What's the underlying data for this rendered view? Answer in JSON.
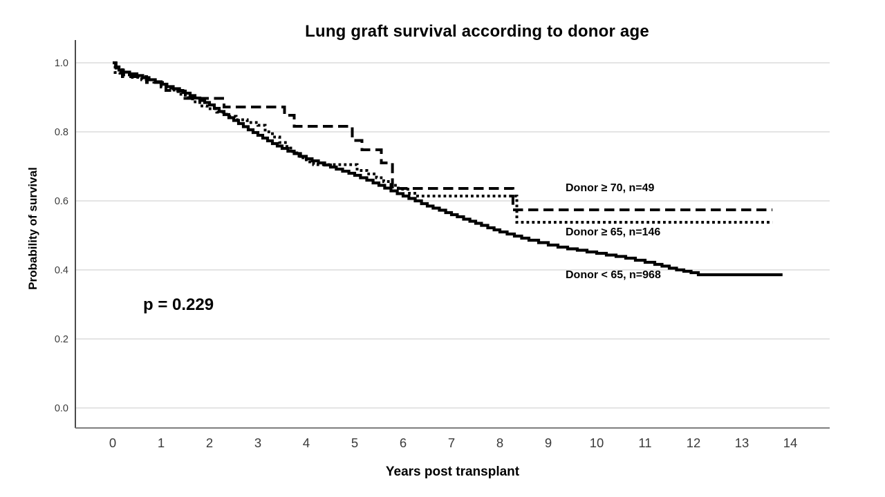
{
  "title": "Lung graft survival according to donor age",
  "p_value_label": "p = 0.229",
  "axes": {
    "x_title": "Years post transplant",
    "y_title": "Probability of survival",
    "x_ticks": [
      "0",
      "1",
      "2",
      "3",
      "4",
      "5",
      "6",
      "7",
      "8",
      "9",
      "10",
      "11",
      "12",
      "13",
      "14"
    ],
    "y_ticks": [
      "0.0",
      "0.2",
      "0.4",
      "0.6",
      "0.8",
      "1.0"
    ]
  },
  "annotations": [
    {
      "text": "Donor ≥ 70, n=49"
    },
    {
      "text": "Donor ≥ 65, n=146"
    },
    {
      "text": "Donor < 65, n=968"
    }
  ],
  "colors": {
    "curve": "#000000",
    "gridline": "#c9c9c9",
    "y_axis_line": "#4a4a4a",
    "x_axis_line": "#7d7d7d",
    "tick_label": "#3a3a3a"
  },
  "chart_data": {
    "type": "line",
    "subtype": "kaplan-meier-step",
    "title": "Lung graft survival according to donor age",
    "xlabel": "Years post transplant",
    "ylabel": "Probability of survival",
    "xlim": [
      0,
      14
    ],
    "ylim": [
      0.0,
      1.0
    ],
    "grid": "horizontal",
    "legend_position": "labels-on-plot",
    "p_value": 0.229,
    "series": [
      {
        "name": "Donor ≥ 70, n=49",
        "group": "donor-ge-70",
        "n": 49,
        "style": "dashed",
        "final_value": 0.574,
        "end_time": 13.63,
        "steps": [
          [
            0,
            1.0
          ],
          [
            0.07,
            0.98
          ],
          [
            0.2,
            0.96
          ],
          [
            0.7,
            0.943
          ],
          [
            1.1,
            0.92
          ],
          [
            1.45,
            0.897
          ],
          [
            2.3,
            0.872
          ],
          [
            3.55,
            0.848
          ],
          [
            3.75,
            0.816
          ],
          [
            4.95,
            0.775
          ],
          [
            5.15,
            0.748
          ],
          [
            5.55,
            0.71
          ],
          [
            5.78,
            0.636
          ],
          [
            8.27,
            0.574
          ]
        ]
      },
      {
        "name": "Donor ≥ 65, n=146",
        "group": "donor-ge-65",
        "n": 146,
        "style": "dotted",
        "final_value": 0.538,
        "end_time": 13.63,
        "steps": [
          [
            0,
            1.0
          ],
          [
            0.05,
            0.972
          ],
          [
            0.15,
            0.965
          ],
          [
            0.35,
            0.958
          ],
          [
            0.6,
            0.951
          ],
          [
            0.85,
            0.944
          ],
          [
            1.0,
            0.93
          ],
          [
            1.2,
            0.921
          ],
          [
            1.35,
            0.909
          ],
          [
            1.5,
            0.899
          ],
          [
            1.65,
            0.887
          ],
          [
            1.8,
            0.875
          ],
          [
            1.95,
            0.867
          ],
          [
            2.15,
            0.857
          ],
          [
            2.35,
            0.845
          ],
          [
            2.55,
            0.835
          ],
          [
            2.78,
            0.827
          ],
          [
            3.0,
            0.819
          ],
          [
            3.15,
            0.8
          ],
          [
            3.3,
            0.785
          ],
          [
            3.45,
            0.769
          ],
          [
            3.6,
            0.753
          ],
          [
            3.72,
            0.739
          ],
          [
            3.85,
            0.725
          ],
          [
            4.0,
            0.713
          ],
          [
            4.15,
            0.705
          ],
          [
            5.05,
            0.688
          ],
          [
            5.25,
            0.678
          ],
          [
            5.45,
            0.667
          ],
          [
            5.6,
            0.656
          ],
          [
            5.75,
            0.645
          ],
          [
            5.9,
            0.634
          ],
          [
            6.1,
            0.622
          ],
          [
            6.3,
            0.614
          ],
          [
            8.35,
            0.538
          ]
        ]
      },
      {
        "name": "Donor < 65, n=968",
        "group": "donor-lt-65",
        "n": 968,
        "style": "solid",
        "final_value": 0.386,
        "end_time": 13.84,
        "steps": [
          [
            0,
            1.0
          ],
          [
            0.06,
            0.988
          ],
          [
            0.13,
            0.979
          ],
          [
            0.22,
            0.973
          ],
          [
            0.35,
            0.968
          ],
          [
            0.5,
            0.963
          ],
          [
            0.62,
            0.957
          ],
          [
            0.75,
            0.951
          ],
          [
            0.88,
            0.945
          ],
          [
            1.0,
            0.938
          ],
          [
            1.12,
            0.931
          ],
          [
            1.25,
            0.925
          ],
          [
            1.38,
            0.918
          ],
          [
            1.5,
            0.912
          ],
          [
            1.6,
            0.905
          ],
          [
            1.7,
            0.898
          ],
          [
            1.8,
            0.891
          ],
          [
            1.9,
            0.885
          ],
          [
            2.0,
            0.878
          ],
          [
            2.1,
            0.868
          ],
          [
            2.2,
            0.859
          ],
          [
            2.3,
            0.85
          ],
          [
            2.4,
            0.841
          ],
          [
            2.5,
            0.833
          ],
          [
            2.6,
            0.824
          ],
          [
            2.7,
            0.815
          ],
          [
            2.8,
            0.806
          ],
          [
            2.9,
            0.798
          ],
          [
            3.0,
            0.79
          ],
          [
            3.1,
            0.782
          ],
          [
            3.2,
            0.774
          ],
          [
            3.3,
            0.766
          ],
          [
            3.4,
            0.759
          ],
          [
            3.5,
            0.752
          ],
          [
            3.62,
            0.744
          ],
          [
            3.75,
            0.737
          ],
          [
            3.88,
            0.729
          ],
          [
            4.0,
            0.722
          ],
          [
            4.12,
            0.716
          ],
          [
            4.25,
            0.71
          ],
          [
            4.38,
            0.704
          ],
          [
            4.5,
            0.698
          ],
          [
            4.62,
            0.692
          ],
          [
            4.75,
            0.686
          ],
          [
            4.88,
            0.68
          ],
          [
            5.0,
            0.674
          ],
          [
            5.12,
            0.667
          ],
          [
            5.25,
            0.66
          ],
          [
            5.38,
            0.652
          ],
          [
            5.5,
            0.645
          ],
          [
            5.62,
            0.637
          ],
          [
            5.75,
            0.629
          ],
          [
            5.88,
            0.621
          ],
          [
            6.0,
            0.614
          ],
          [
            6.12,
            0.607
          ],
          [
            6.25,
            0.6
          ],
          [
            6.38,
            0.592
          ],
          [
            6.5,
            0.585
          ],
          [
            6.62,
            0.579
          ],
          [
            6.75,
            0.573
          ],
          [
            6.88,
            0.566
          ],
          [
            7.0,
            0.56
          ],
          [
            7.12,
            0.554
          ],
          [
            7.25,
            0.547
          ],
          [
            7.38,
            0.541
          ],
          [
            7.5,
            0.535
          ],
          [
            7.62,
            0.529
          ],
          [
            7.75,
            0.522
          ],
          [
            7.88,
            0.516
          ],
          [
            8.0,
            0.51
          ],
          [
            8.15,
            0.504
          ],
          [
            8.3,
            0.498
          ],
          [
            8.45,
            0.492
          ],
          [
            8.6,
            0.486
          ],
          [
            8.8,
            0.479
          ],
          [
            9.0,
            0.472
          ],
          [
            9.2,
            0.466
          ],
          [
            9.4,
            0.461
          ],
          [
            9.6,
            0.457
          ],
          [
            9.8,
            0.452
          ],
          [
            10.0,
            0.448
          ],
          [
            10.2,
            0.443
          ],
          [
            10.4,
            0.439
          ],
          [
            10.6,
            0.434
          ],
          [
            10.8,
            0.428
          ],
          [
            11.0,
            0.422
          ],
          [
            11.2,
            0.416
          ],
          [
            11.35,
            0.411
          ],
          [
            11.5,
            0.405
          ],
          [
            11.65,
            0.4
          ],
          [
            11.8,
            0.396
          ],
          [
            11.95,
            0.392
          ],
          [
            12.1,
            0.386
          ]
        ]
      }
    ]
  }
}
